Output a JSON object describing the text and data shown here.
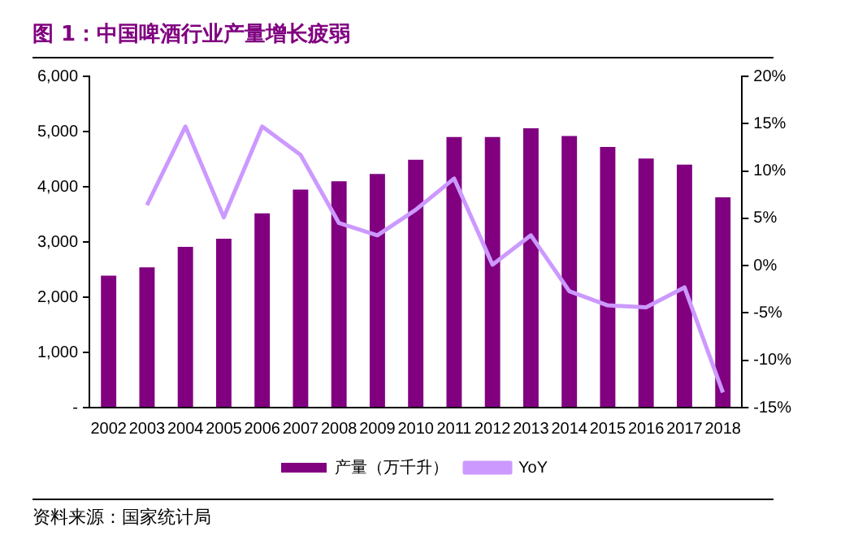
{
  "chart_data": {
    "type": "bar",
    "title": "图 1：中国啤酒行业产量增长疲弱",
    "categories": [
      "2002",
      "2003",
      "2004",
      "2005",
      "2006",
      "2007",
      "2008",
      "2009",
      "2010",
      "2011",
      "2012",
      "2013",
      "2014",
      "2015",
      "2016",
      "2017",
      "2018"
    ],
    "series": [
      {
        "name": "产量（万千升）",
        "color": "#800080",
        "values": [
          2390,
          2540,
          2910,
          3060,
          3520,
          3950,
          4100,
          4230,
          4490,
          4900,
          4900,
          5060,
          4920,
          4720,
          4510,
          4400,
          3810
        ]
      },
      {
        "name": "YoY",
        "type": "line",
        "axis": "y2",
        "color": "#cc99ff",
        "values": [
          null,
          6.4,
          14.7,
          5.1,
          14.7,
          11.7,
          4.5,
          3.2,
          5.9,
          9.2,
          0.1,
          3.2,
          -2.7,
          -4.2,
          -4.4,
          -2.3,
          -13.4
        ]
      }
    ],
    "ylim": [
      0,
      6000
    ],
    "yticks": [
      {
        "value": 0,
        "label": "-"
      },
      {
        "value": 1000,
        "label": "1,000"
      },
      {
        "value": 2000,
        "label": "2,000"
      },
      {
        "value": 3000,
        "label": "3,000"
      },
      {
        "value": 4000,
        "label": "4,000"
      },
      {
        "value": 5000,
        "label": "5,000"
      },
      {
        "value": 6000,
        "label": "6,000"
      }
    ],
    "y2lim": [
      -15,
      20
    ],
    "y2ticks": [
      {
        "value": -15,
        "label": "-15%"
      },
      {
        "value": -10,
        "label": "-10%"
      },
      {
        "value": -5,
        "label": "-5%"
      },
      {
        "value": 0,
        "label": "0%"
      },
      {
        "value": 5,
        "label": "5%"
      },
      {
        "value": 10,
        "label": "10%"
      },
      {
        "value": 15,
        "label": "15%"
      },
      {
        "value": 20,
        "label": "20%"
      }
    ],
    "grid": false,
    "legend": "bottom",
    "marker": "none",
    "annotations": [
      "资料来源：国家统计局"
    ]
  }
}
